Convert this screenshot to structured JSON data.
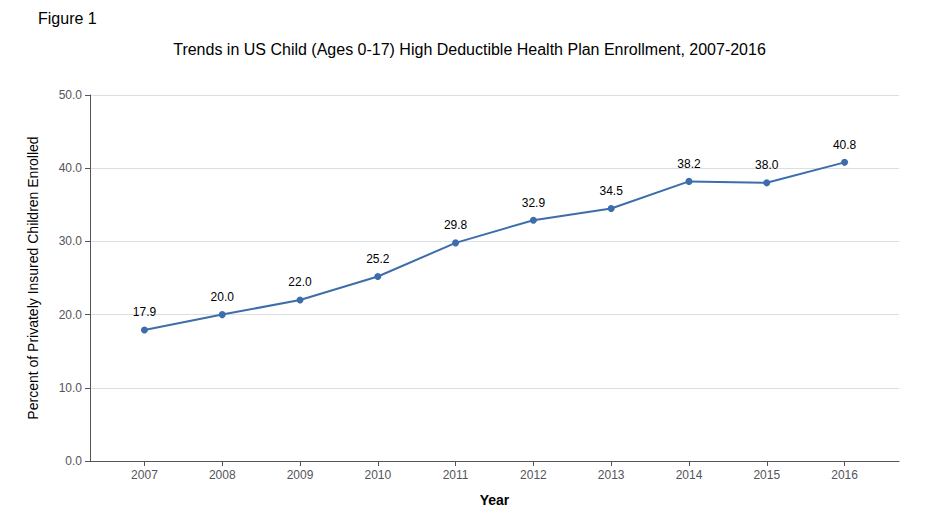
{
  "chart_data": {
    "type": "line",
    "title": "Trends in US Child (Ages 0-17) High Deductible Health Plan Enrollment, 2007-2016",
    "annotations": [
      "Figure 1"
    ],
    "xlabel": "Year",
    "ylabel": "Percent of Privately Insured Children Enrolled",
    "x": [
      2007,
      2008,
      2009,
      2010,
      2011,
      2012,
      2013,
      2014,
      2015,
      2016
    ],
    "values": [
      17.9,
      20.0,
      22.0,
      25.2,
      29.8,
      32.9,
      34.5,
      38.2,
      38.0,
      40.8
    ],
    "value_labels": [
      "17.9",
      "20.0",
      "22.0",
      "25.2",
      "29.8",
      "32.9",
      "34.5",
      "38.2",
      "38.0",
      "40.8"
    ],
    "data_labels": true,
    "color": "#3d6daa",
    "marker": "circle",
    "xlim": [
      2006.3,
      2016.7
    ],
    "xticks": [
      2007,
      2008,
      2009,
      2010,
      2011,
      2012,
      2013,
      2014,
      2015,
      2016
    ],
    "ylim": [
      0.0,
      50.0
    ],
    "yticks": [
      {
        "value": 0,
        "label": "0.0"
      },
      {
        "value": 10,
        "label": "10.0"
      },
      {
        "value": 20,
        "label": "20.0"
      },
      {
        "value": 30,
        "label": "30.0"
      },
      {
        "value": 40,
        "label": "40.0"
      },
      {
        "value": 50,
        "label": "50.0"
      }
    ],
    "grid": true
  }
}
